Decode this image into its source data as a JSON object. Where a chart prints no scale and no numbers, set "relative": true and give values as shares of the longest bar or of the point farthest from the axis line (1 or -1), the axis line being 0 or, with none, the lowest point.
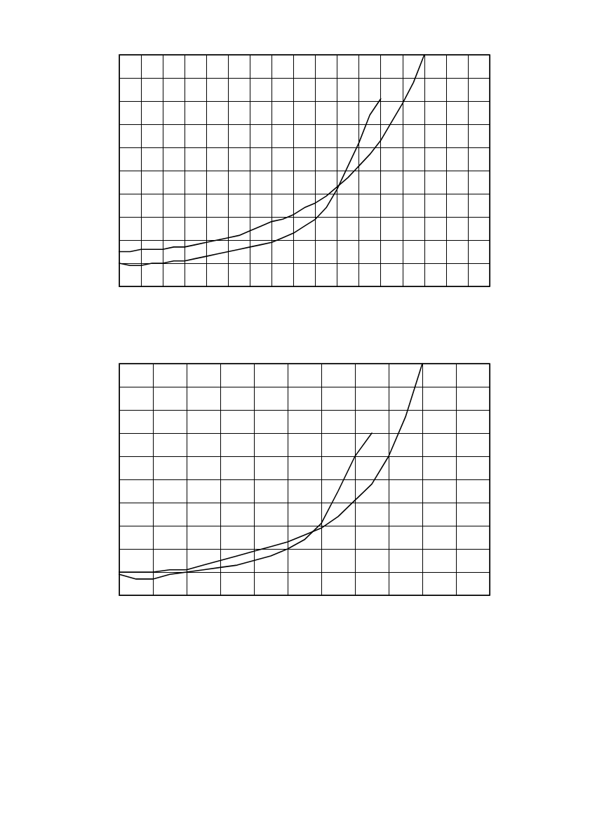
{
  "chart_data": [
    {
      "type": "line",
      "relative": true,
      "grid": true,
      "marker": "none",
      "line_style": "solid",
      "categories": [
        null,
        null,
        null,
        null,
        null,
        null,
        null,
        null,
        null,
        null,
        null,
        null,
        null,
        null,
        null,
        null,
        null,
        null,
        null,
        null,
        null,
        null,
        null,
        null,
        null,
        null,
        null,
        null,
        null,
        null,
        null,
        null,
        null,
        null,
        null
      ],
      "series": [
        {
          "color": "#000000",
          "values": [
            0.1,
            0.09,
            0.09,
            0.1,
            0.1,
            0.11,
            0.11,
            0.12,
            0.13,
            0.14,
            0.15,
            0.16,
            0.17,
            0.18,
            0.19,
            0.21,
            0.23,
            0.26,
            0.29,
            0.34,
            0.42,
            0.52,
            0.62,
            0.74,
            0.81,
            null,
            null,
            null,
            null,
            null,
            null,
            null,
            null,
            null,
            null
          ]
        },
        {
          "color": "#000000",
          "values": [
            0.15,
            0.15,
            0.16,
            0.16,
            0.16,
            0.17,
            0.17,
            0.18,
            0.19,
            0.2,
            0.21,
            0.22,
            0.24,
            0.26,
            0.28,
            0.29,
            0.31,
            0.34,
            0.36,
            0.39,
            0.43,
            0.47,
            0.52,
            0.57,
            0.63,
            0.71,
            0.79,
            0.88,
            1.0,
            null,
            null,
            null,
            null,
            null,
            null
          ]
        }
      ]
    },
    {
      "type": "line",
      "relative": true,
      "grid": true,
      "marker": "none",
      "line_style": "solid",
      "categories": [
        null,
        null,
        null,
        null,
        null,
        null,
        null,
        null,
        null,
        null,
        null,
        null,
        null,
        null,
        null,
        null,
        null,
        null,
        null,
        null,
        null,
        null,
        null
      ],
      "series": [
        {
          "color": "#000000",
          "values": [
            0.09,
            0.07,
            0.07,
            0.09,
            0.1,
            0.11,
            0.12,
            0.13,
            0.15,
            0.17,
            0.2,
            0.24,
            0.31,
            0.45,
            0.6,
            0.7,
            null,
            null,
            null,
            null,
            null,
            null,
            null
          ]
        },
        {
          "color": "#000000",
          "values": [
            0.1,
            0.1,
            0.1,
            0.11,
            0.11,
            0.13,
            0.15,
            0.17,
            0.19,
            0.21,
            0.23,
            0.26,
            0.29,
            0.34,
            0.41,
            0.48,
            0.6,
            0.77,
            1.0,
            null,
            null,
            null,
            null
          ]
        }
      ]
    }
  ]
}
